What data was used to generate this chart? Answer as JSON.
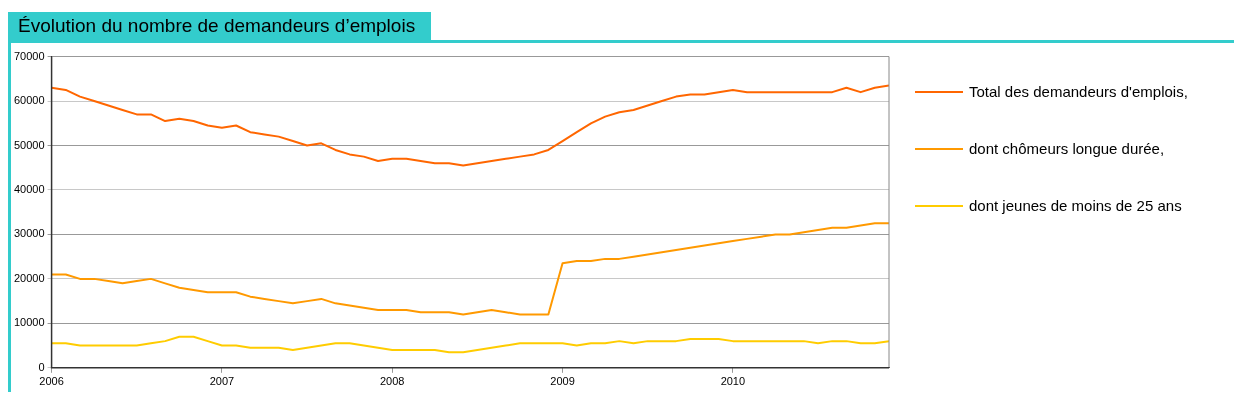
{
  "chart_data": {
    "type": "line",
    "title": "Évolution du nombre de demandeurs d’emplois",
    "x": [
      "2006-01",
      "2006-02",
      "2006-03",
      "2006-04",
      "2006-05",
      "2006-06",
      "2006-07",
      "2006-08",
      "2006-09",
      "2006-10",
      "2006-11",
      "2006-12",
      "2007-01",
      "2007-02",
      "2007-03",
      "2007-04",
      "2007-05",
      "2007-06",
      "2007-07",
      "2007-08",
      "2007-09",
      "2007-10",
      "2007-11",
      "2007-12",
      "2008-01",
      "2008-02",
      "2008-03",
      "2008-04",
      "2008-05",
      "2008-06",
      "2008-07",
      "2008-08",
      "2008-09",
      "2008-10",
      "2008-11",
      "2008-12",
      "2009-01",
      "2009-02",
      "2009-03",
      "2009-04",
      "2009-05",
      "2009-06",
      "2009-07",
      "2009-08",
      "2009-09",
      "2009-10",
      "2009-11",
      "2009-12",
      "2010-01",
      "2010-02",
      "2010-03",
      "2010-04",
      "2010-05",
      "2010-06",
      "2010-07",
      "2010-08",
      "2010-09",
      "2010-10",
      "2010-11",
      "2010-12"
    ],
    "series": [
      {
        "name": "Total des demandeurs d'emplois,",
        "color": "#ff6600",
        "values": [
          63000,
          62500,
          61000,
          60000,
          59000,
          58000,
          57000,
          57000,
          55500,
          56000,
          55500,
          54500,
          54000,
          54500,
          53000,
          52500,
          52000,
          51000,
          50000,
          50500,
          49000,
          48000,
          47500,
          46500,
          47000,
          47000,
          46500,
          46000,
          46000,
          45500,
          46000,
          46500,
          47000,
          47500,
          48000,
          49000,
          51000,
          53000,
          55000,
          56500,
          57500,
          58000,
          59000,
          60000,
          61000,
          61500,
          61500,
          62000,
          62500,
          62000,
          62000,
          62000,
          62000,
          62000,
          62000,
          62000,
          63000,
          62000,
          63000,
          63500
        ]
      },
      {
        "name": "dont chômeurs longue durée,",
        "color": "#ff9900",
        "values": [
          21000,
          21000,
          20000,
          20000,
          19500,
          19000,
          19500,
          20000,
          19000,
          18000,
          17500,
          17000,
          17000,
          17000,
          16000,
          15500,
          15000,
          14500,
          15000,
          15500,
          14500,
          14000,
          13500,
          13000,
          13000,
          13000,
          12500,
          12500,
          12500,
          12000,
          12500,
          13000,
          12500,
          12000,
          12000,
          12000,
          23500,
          24000,
          24000,
          24500,
          24500,
          25000,
          25500,
          26000,
          26500,
          27000,
          27500,
          28000,
          28500,
          29000,
          29500,
          30000,
          30000,
          30500,
          31000,
          31500,
          31500,
          32000,
          32500,
          32500
        ]
      },
      {
        "name": "dont jeunes de moins de 25 ans",
        "color": "#ffcc00",
        "values": [
          5500,
          5500,
          5000,
          5000,
          5000,
          5000,
          5000,
          5500,
          6000,
          7000,
          7000,
          6000,
          5000,
          5000,
          4500,
          4500,
          4500,
          4000,
          4500,
          5000,
          5500,
          5500,
          5000,
          4500,
          4000,
          4000,
          4000,
          4000,
          3500,
          3500,
          4000,
          4500,
          5000,
          5500,
          5500,
          5500,
          5500,
          5000,
          5500,
          5500,
          6000,
          5500,
          6000,
          6000,
          6000,
          6500,
          6500,
          6500,
          6000,
          6000,
          6000,
          6000,
          6000,
          6000,
          5500,
          6000,
          6000,
          5500,
          5500,
          6000
        ]
      }
    ],
    "xlim": [
      "2006-01",
      "2010-12"
    ],
    "xticks": [
      "2006",
      "2007",
      "2008",
      "2009",
      "2010"
    ],
    "ylim": [
      0,
      70000
    ],
    "yticks": [
      0,
      10000,
      20000,
      30000,
      40000,
      50000,
      60000,
      70000
    ],
    "grid": "y",
    "legend": "right",
    "marker": "none",
    "line_style": "solid"
  }
}
